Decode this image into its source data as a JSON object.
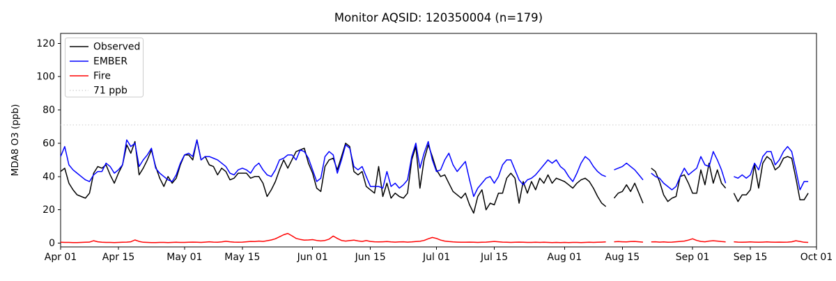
{
  "chart_data": {
    "type": "line",
    "title": "Monitor AQSID: 120350004 (n=179)",
    "n_points": 179,
    "xlabel": "",
    "ylabel": "MDA8 O3 (ppb)",
    "ylim": [
      -2.3,
      126.0
    ],
    "y_ticks": [
      0,
      20,
      40,
      60,
      80,
      100,
      120
    ],
    "grid": false,
    "legend_position": "upper left",
    "x_domain_days": 183,
    "x_start": "Apr 01",
    "x_end": "Oct 01",
    "x_tick_days": [
      0,
      14,
      30,
      44,
      61,
      75,
      91,
      105,
      122,
      136,
      153,
      167,
      183
    ],
    "x_tick_labels": [
      "Apr 01",
      "Apr 15",
      "May 01",
      "May 15",
      "Jun 01",
      "Jun 15",
      "Jul 01",
      "Jul 15",
      "Aug 01",
      "Aug 15",
      "Sep 01",
      "Sep 15",
      "Oct 01"
    ],
    "reference_line": {
      "value": 71,
      "label": "71 ppb",
      "color": "#d3d3d3",
      "style": "dotted"
    },
    "series": [
      {
        "name": "Observed",
        "color": "#000000",
        "values": [
          43,
          45,
          36,
          32,
          29,
          28,
          27,
          30,
          42,
          46,
          45,
          47,
          41,
          36,
          42,
          47,
          59,
          54,
          61,
          41,
          45,
          50,
          56,
          46,
          39,
          34,
          40,
          36,
          39,
          47,
          53,
          53,
          50,
          62,
          50,
          52,
          47,
          46,
          41,
          45,
          43,
          38,
          39,
          42,
          42,
          42,
          39,
          40,
          40,
          36,
          28,
          32,
          37,
          44,
          50,
          45,
          50,
          55,
          56,
          57,
          48,
          42,
          33,
          31,
          46,
          50,
          51,
          44,
          52,
          60,
          58,
          43,
          41,
          43,
          34,
          32,
          30,
          46,
          28,
          36,
          27,
          30,
          28,
          27,
          30,
          50,
          58,
          33,
          50,
          59,
          52,
          44,
          40,
          41,
          36,
          31,
          29,
          27,
          30,
          23,
          18,
          28,
          32,
          20,
          24,
          23,
          30,
          30,
          39,
          42,
          39,
          24,
          37,
          30,
          37,
          32,
          39,
          36,
          41,
          36,
          39,
          38,
          37,
          35,
          33,
          36,
          38,
          39,
          37,
          33,
          28,
          24,
          22,
          null,
          27,
          30,
          31,
          35,
          31,
          36,
          30,
          24,
          null,
          45,
          43,
          37,
          29,
          25,
          27,
          28,
          40,
          41,
          36,
          30,
          30,
          44,
          35,
          48,
          36,
          44,
          36,
          33,
          null,
          30,
          25,
          29,
          29,
          32,
          47,
          33,
          48,
          52,
          50,
          44,
          46,
          51,
          52,
          51,
          39,
          26,
          26,
          30
        ]
      },
      {
        "name": "EMBER",
        "color": "#0000ff",
        "values": [
          52,
          58,
          47,
          44,
          42,
          40,
          38,
          37,
          41,
          43,
          43,
          48,
          46,
          42,
          44,
          47,
          62,
          58,
          60,
          46,
          50,
          53,
          57,
          45,
          42,
          40,
          38,
          37,
          41,
          48,
          53,
          54,
          52,
          62,
          50,
          52,
          52,
          51,
          50,
          48,
          46,
          42,
          41,
          44,
          45,
          44,
          42,
          46,
          48,
          44,
          41,
          40,
          44,
          50,
          51,
          53,
          53,
          50,
          56,
          55,
          51,
          44,
          37,
          39,
          52,
          55,
          53,
          42,
          50,
          59,
          57,
          46,
          44,
          46,
          40,
          34,
          34,
          34,
          33,
          43,
          34,
          36,
          33,
          35,
          38,
          52,
          60,
          45,
          54,
          61,
          50,
          43,
          44,
          50,
          54,
          47,
          43,
          46,
          49,
          38,
          28,
          33,
          36,
          39,
          40,
          36,
          40,
          47,
          50,
          50,
          44,
          38,
          35,
          38,
          39,
          41,
          44,
          47,
          50,
          48,
          50,
          46,
          44,
          40,
          37,
          42,
          48,
          52,
          50,
          46,
          43,
          41,
          40,
          null,
          44,
          45,
          46,
          48,
          46,
          44,
          41,
          38,
          null,
          42,
          40,
          39,
          36,
          34,
          32,
          34,
          40,
          45,
          41,
          43,
          45,
          52,
          47,
          46,
          55,
          50,
          44,
          36,
          null,
          40,
          39,
          41,
          39,
          41,
          48,
          44,
          52,
          55,
          55,
          47,
          50,
          55,
          58,
          55,
          44,
          32,
          37,
          37
        ]
      },
      {
        "name": "Fire",
        "color": "#ff0000",
        "values": [
          0.5,
          0.4,
          0.4,
          0.3,
          0.3,
          0.4,
          0.5,
          0.6,
          1.4,
          0.8,
          0.5,
          0.4,
          0.4,
          0.3,
          0.4,
          0.5,
          0.6,
          0.8,
          1.9,
          1.0,
          0.5,
          0.4,
          0.3,
          0.3,
          0.4,
          0.4,
          0.3,
          0.4,
          0.5,
          0.4,
          0.4,
          0.5,
          0.6,
          0.5,
          0.4,
          0.6,
          0.8,
          0.6,
          0.5,
          0.7,
          1.1,
          0.8,
          0.6,
          0.5,
          0.6,
          0.8,
          1.0,
          0.9,
          1.2,
          1.0,
          1.4,
          1.9,
          2.6,
          3.8,
          5.0,
          5.8,
          4.4,
          2.8,
          2.2,
          1.8,
          1.9,
          2.1,
          1.6,
          1.3,
          1.6,
          2.4,
          4.2,
          2.8,
          1.6,
          1.2,
          1.5,
          1.8,
          1.3,
          1.0,
          1.5,
          1.0,
          0.8,
          0.7,
          0.8,
          0.9,
          0.7,
          0.6,
          0.7,
          0.8,
          0.6,
          0.7,
          0.9,
          1.1,
          1.6,
          2.6,
          3.4,
          2.8,
          1.8,
          1.2,
          0.9,
          0.7,
          0.6,
          0.5,
          0.5,
          0.6,
          0.5,
          0.4,
          0.5,
          0.6,
          0.8,
          1.0,
          0.8,
          0.6,
          0.5,
          0.4,
          0.5,
          0.6,
          0.5,
          0.4,
          0.4,
          0.5,
          0.4,
          0.5,
          0.4,
          0.3,
          0.4,
          0.3,
          0.4,
          0.3,
          0.4,
          0.4,
          0.3,
          0.4,
          0.5,
          0.4,
          0.5,
          0.6,
          0.7,
          null,
          0.8,
          0.9,
          0.8,
          0.7,
          0.9,
          1.0,
          0.8,
          0.6,
          null,
          0.7,
          0.8,
          0.6,
          0.7,
          0.5,
          0.6,
          0.8,
          1.0,
          1.2,
          1.8,
          2.6,
          1.6,
          1.0,
          0.8,
          1.2,
          1.4,
          1.2,
          0.9,
          0.7,
          null,
          0.8,
          0.6,
          0.5,
          0.6,
          0.7,
          0.6,
          0.5,
          0.6,
          0.7,
          0.6,
          0.5,
          0.6,
          0.5,
          0.6,
          0.8,
          1.4,
          1.0,
          0.5,
          0.4
        ]
      }
    ]
  }
}
